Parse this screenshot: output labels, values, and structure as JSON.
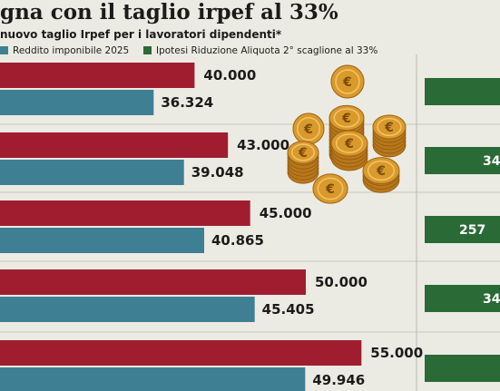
{
  "header": {
    "title": "gna con il taglio irpef al 33%",
    "subtitle": "nuovo taglio Irpef per i lavoratori dipendenti*"
  },
  "legend": {
    "items": [
      {
        "label": "Reddito imponibile 2025",
        "color": "#3f7f94"
      },
      {
        "label": "Ipotesi Riduzione Aliquota 2° scaglione al 33%",
        "color": "#2a6a36"
      }
    ]
  },
  "colors": {
    "gross_bar": "#a01d30",
    "taxable_bar": "#3f7f94",
    "saving_bar": "#2a6a36",
    "background": "#ecebe3",
    "coins": "#d99a2b"
  },
  "decoration": {
    "coins_icon": "euro-coins-stack-icon"
  },
  "chart_data": {
    "type": "bar",
    "orientation": "horizontal",
    "title": "gna con il taglio irpef al 33%",
    "subtitle": "nuovo taglio Irpef per i lavoratori dipendenti*",
    "xlim": [
      0,
      60000
    ],
    "grid": true,
    "legend_position": "top",
    "categories": [
      "40.000",
      "43.000",
      "45.000",
      "50.000",
      "55.000"
    ],
    "series": [
      {
        "values": [
          40000,
          43000,
          45000,
          50000,
          55000
        ],
        "labels": [
          "40.000",
          "43.000",
          "45.000",
          "50.000",
          "55.000"
        ]
      },
      {
        "name": "Reddito imponibile 2025",
        "values": [
          36324,
          39048,
          40865,
          45405,
          49946
        ],
        "labels": [
          "36.324",
          "39.048",
          "40.865",
          "45.405",
          "49.946"
        ]
      },
      {
        "name": "Ipotesi Riduzione Aliquota 2° scaglione al 33%",
        "labels": [
          "",
          "34",
          "257",
          "34",
          ""
        ]
      }
    ]
  }
}
